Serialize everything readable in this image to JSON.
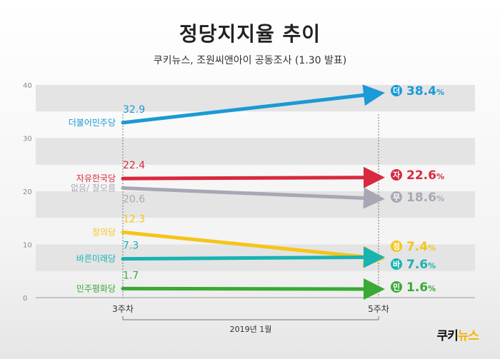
{
  "title": "정당지지율 추이",
  "subtitle": "쿠키뉴스, 조원씨앤아이 공동조사 (1.30 발표)",
  "logo": {
    "part1": "쿠키",
    "part2": "뉴스"
  },
  "chart_data": {
    "type": "line",
    "title": "정당지지율 추이",
    "subtitle": "쿠키뉴스, 조원씨앤아이 공동조사 (1.30 발표)",
    "categories": [
      "3주차",
      "5주차"
    ],
    "period_label": "2019년 1월",
    "ylim": [
      0,
      40
    ],
    "yticks": [
      "0",
      "10",
      "20",
      "30",
      "40"
    ],
    "grid": "alternating horizontal bands",
    "series": [
      {
        "name": "더불어민주당",
        "badge": "더",
        "values": [
          32.9,
          38.4
        ],
        "start_label": "32.9",
        "end_label": "38.4",
        "color": "#1a9ad6"
      },
      {
        "name": "자유한국당",
        "badge": "자",
        "values": [
          22.4,
          22.6
        ],
        "start_label": "22.4",
        "end_label": "22.6",
        "color": "#d8293e"
      },
      {
        "name": "없음/ 잘모름",
        "badge": "무",
        "values": [
          20.6,
          18.6
        ],
        "start_label": "20.6",
        "end_label": "18.6",
        "color": "#a8a8b4"
      },
      {
        "name": "정의당",
        "badge": "정",
        "values": [
          12.3,
          7.4
        ],
        "start_label": "12.3",
        "end_label": "7.4",
        "color": "#f5c518"
      },
      {
        "name": "바른미래당",
        "badge": "바",
        "values": [
          7.3,
          7.6
        ],
        "start_label": "7.3",
        "end_label": "7.6",
        "color": "#19b3b1"
      },
      {
        "name": "민주평화당",
        "badge": "민",
        "values": [
          1.7,
          1.6
        ],
        "start_label": "1.7",
        "end_label": "1.6",
        "color": "#3aa935"
      }
    ],
    "unit": "%"
  }
}
